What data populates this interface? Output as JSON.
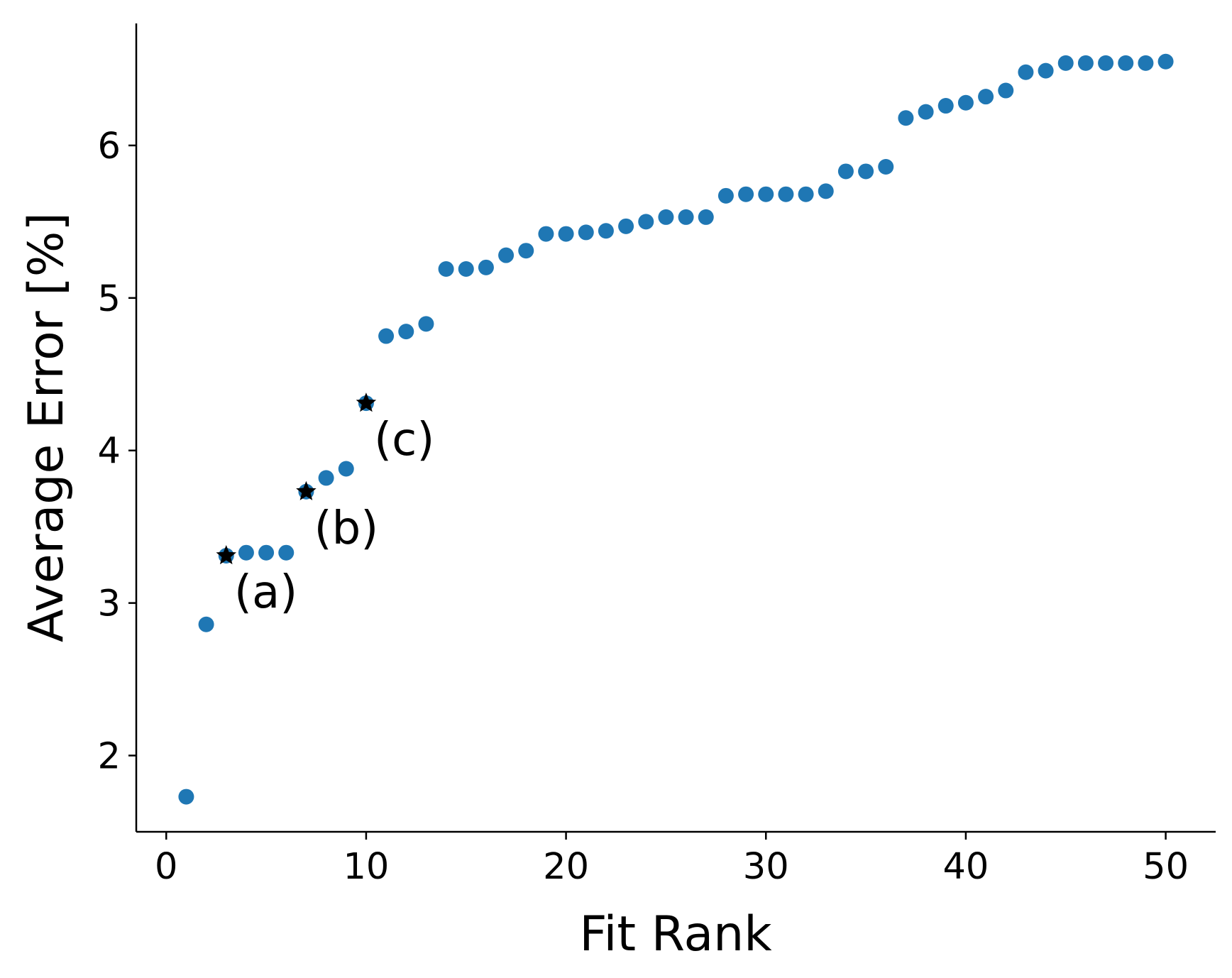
{
  "chart_data": {
    "type": "scatter",
    "title": "",
    "xlabel": "Fit Rank",
    "ylabel": "Average Error [%]",
    "xlim": [
      -1.5,
      52.5
    ],
    "ylim": [
      1.5,
      6.8
    ],
    "xticks": [
      0,
      10,
      20,
      30,
      40,
      50
    ],
    "yticks": [
      2,
      3,
      4,
      5,
      6
    ],
    "grid": false,
    "colors": {
      "points": "#1f77b4",
      "stars": "#000000",
      "axes": "#000000"
    },
    "series": [
      {
        "marker": "circle",
        "x": [
          1,
          2,
          3,
          4,
          5,
          6,
          7,
          8,
          9,
          10,
          11,
          12,
          13,
          14,
          15,
          16,
          17,
          18,
          19,
          20,
          21,
          22,
          23,
          24,
          25,
          26,
          27,
          28,
          29,
          30,
          31,
          32,
          33,
          34,
          35,
          36,
          37,
          38,
          39,
          40,
          41,
          42,
          43,
          44,
          45,
          46,
          47,
          48,
          49,
          50
        ],
        "y": [
          1.73,
          2.86,
          3.31,
          3.33,
          3.33,
          3.33,
          3.73,
          3.82,
          3.88,
          4.31,
          4.75,
          4.78,
          4.83,
          5.19,
          5.19,
          5.2,
          5.28,
          5.31,
          5.42,
          5.42,
          5.43,
          5.44,
          5.47,
          5.5,
          5.53,
          5.53,
          5.53,
          5.67,
          5.68,
          5.68,
          5.68,
          5.68,
          5.7,
          5.83,
          5.83,
          5.86,
          6.18,
          6.22,
          6.26,
          6.28,
          6.32,
          6.36,
          6.48,
          6.49,
          6.54,
          6.54,
          6.54,
          6.54,
          6.54,
          6.55
        ]
      },
      {
        "marker": "star",
        "x": [
          3,
          7,
          10
        ],
        "y": [
          3.31,
          3.73,
          4.31
        ]
      }
    ],
    "annotations": [
      {
        "text": "(a)",
        "x": 3.4,
        "y": 2.97
      },
      {
        "text": "(b)",
        "x": 7.4,
        "y": 3.39
      },
      {
        "text": "(c)",
        "x": 10.4,
        "y": 3.97
      }
    ]
  }
}
